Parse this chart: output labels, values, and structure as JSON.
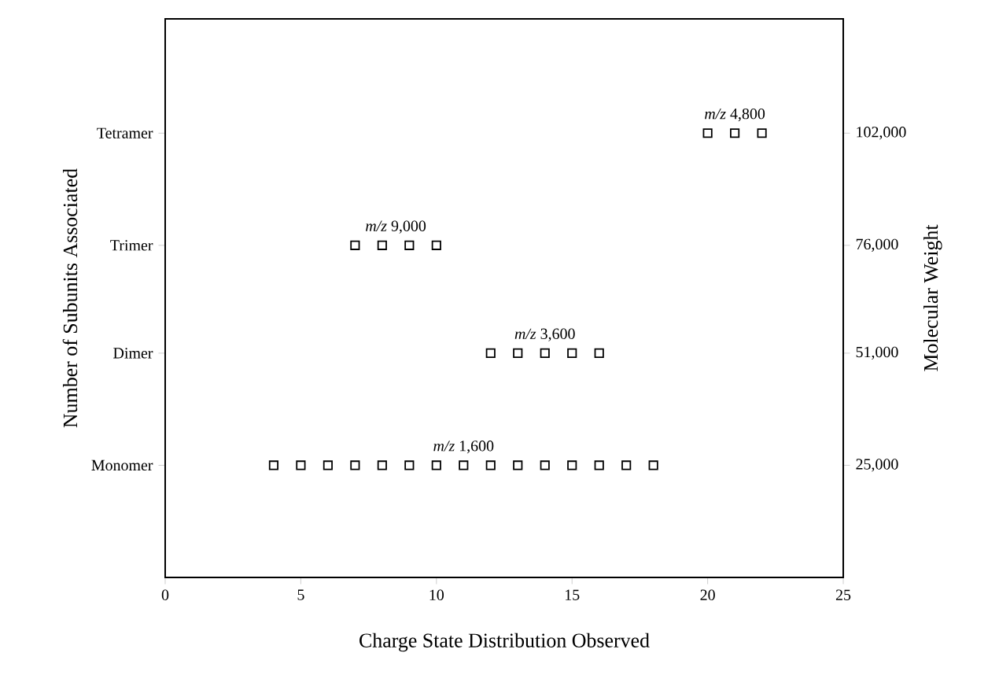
{
  "chart_data": {
    "type": "scatter",
    "xlabel": "Charge State Distribution Observed",
    "ylabel": "Number of Subunits Associated",
    "y2label": "Molecular Weight",
    "xlim": [
      0,
      25
    ],
    "xticks": [
      0,
      5,
      10,
      15,
      20,
      25
    ],
    "y2lim": [
      -1000,
      128500
    ],
    "y2ticks": [
      {
        "value": 25000,
        "label": "25,000"
      },
      {
        "value": 51000,
        "label": "51,000"
      },
      {
        "value": 76000,
        "label": "76,000"
      },
      {
        "value": 102000,
        "label": "102,000"
      }
    ],
    "marker": "square",
    "series": [
      {
        "axis": "y2",
        "color": "#000000",
        "x": [
          4,
          5,
          6,
          7,
          8,
          9,
          10,
          11,
          12,
          13,
          14,
          15,
          16,
          17,
          18
        ],
        "values": [
          25000,
          25000,
          25000,
          25000,
          25000,
          25000,
          25000,
          25000,
          25000,
          25000,
          25000,
          25000,
          25000,
          25000,
          25000
        ]
      },
      {
        "axis": "y2",
        "color": "#000000",
        "x": [
          12,
          13,
          14,
          15,
          16
        ],
        "values": [
          51000,
          51000,
          51000,
          51000,
          51000
        ]
      },
      {
        "axis": "y2",
        "color": "#000000",
        "x": [
          7,
          8,
          9,
          10
        ],
        "values": [
          76000,
          76000,
          76000,
          76000
        ]
      },
      {
        "axis": "y2",
        "color": "#000000",
        "x": [
          20,
          21,
          22
        ],
        "values": [
          102000,
          102000,
          102000
        ]
      }
    ],
    "annotations": [
      "Monomer",
      "Dimer",
      "Trimer",
      "Tetramer",
      "*m/z* 1,600",
      "*m/z* 3,600",
      "*m/z* 9,000",
      "*m/z* 4,800"
    ]
  }
}
